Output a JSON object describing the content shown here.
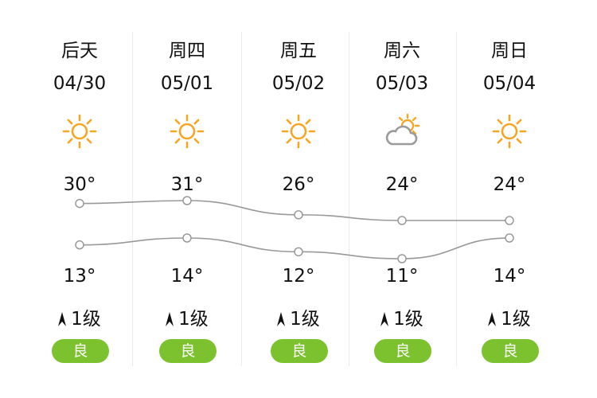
{
  "days": [
    {
      "day": "后天",
      "date": "04/30",
      "weather_icon": "sunny-icon",
      "high": "30°",
      "low": "13°",
      "wind": "1级",
      "aqi": "良",
      "high_val": 30,
      "low_val": 13
    },
    {
      "day": "周四",
      "date": "05/01",
      "weather_icon": "sunny-icon",
      "high": "31°",
      "low": "14°",
      "wind": "1级",
      "aqi": "良",
      "high_val": 31,
      "low_val": 14
    },
    {
      "day": "周五",
      "date": "05/02",
      "weather_icon": "sunny-icon",
      "high": "26°",
      "low": "12°",
      "wind": "1级",
      "aqi": "良",
      "high_val": 26,
      "low_val": 12
    },
    {
      "day": "周六",
      "date": "05/03",
      "weather_icon": "partly-cloudy-icon",
      "high": "24°",
      "low": "11°",
      "wind": "1级",
      "aqi": "良",
      "high_val": 24,
      "low_val": 11
    },
    {
      "day": "周日",
      "date": "05/04",
      "weather_icon": "sunny-icon",
      "high": "24°",
      "low": "14°",
      "wind": "1级",
      "aqi": "良",
      "high_val": 24,
      "low_val": 14
    }
  ],
  "colors": {
    "sun": "#f5a623",
    "cloud": "#9b9b9b",
    "aqi_good": "#7cc22f",
    "curve": "#999999"
  }
}
